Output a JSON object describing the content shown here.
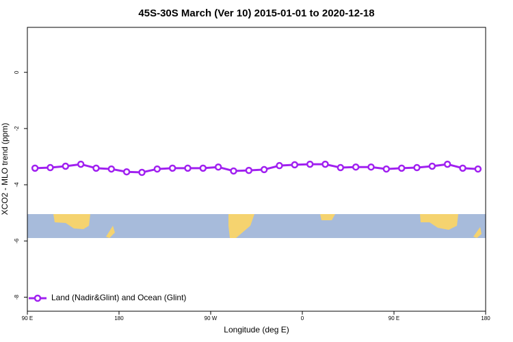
{
  "chart_data": {
    "type": "line",
    "title": "45S-30S March (Ver 10)   2015-01-01 to 2020-12-18",
    "x_label": "Longitude (deg E)",
    "y_label": "XCO2 - MLO trend (ppm)",
    "xlim": [
      90,
      540
    ],
    "xticks": [
      {
        "value": 90,
        "label": "90 E"
      },
      {
        "value": 180,
        "label": "180"
      },
      {
        "value": 270,
        "label": "90 W"
      },
      {
        "value": 360,
        "label": "0"
      },
      {
        "value": 450,
        "label": "90 E"
      },
      {
        "value": 540,
        "label": "180"
      }
    ],
    "ylim": [
      -8.5,
      1.6
    ],
    "yticks": [
      0,
      -2,
      -4,
      -6,
      -8
    ],
    "legend": "bottom-left",
    "x": [
      97.5,
      112.5,
      127.5,
      142.5,
      157.5,
      172.5,
      187.5,
      202.5,
      217.5,
      232.5,
      247.5,
      262.5,
      277.5,
      292.5,
      307.5,
      322.5,
      337.5,
      352.5,
      367.5,
      382.5,
      397.5,
      412.5,
      427.5,
      442.5,
      457.5,
      472.5,
      487.5,
      502.5,
      517.5,
      532.5
    ],
    "series": [
      {
        "name": "Land (Nadir&Glint) and Ocean (Glint)",
        "color": "#a020f0",
        "values": [
          -3.41,
          -3.39,
          -3.34,
          -3.27,
          -3.41,
          -3.44,
          -3.54,
          -3.56,
          -3.44,
          -3.41,
          -3.41,
          -3.41,
          -3.37,
          -3.51,
          -3.49,
          -3.46,
          -3.32,
          -3.29,
          -3.27,
          -3.27,
          -3.39,
          -3.37,
          -3.37,
          -3.44,
          -3.41,
          -3.39,
          -3.34,
          -3.27,
          -3.41,
          -3.44
        ]
      }
    ]
  }
}
